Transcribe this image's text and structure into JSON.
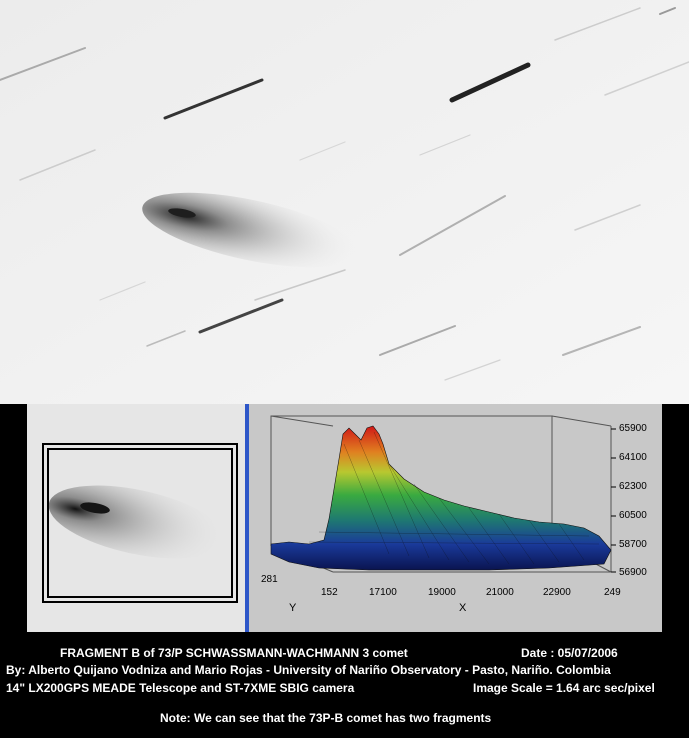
{
  "plot": {
    "z_ticks": [
      "65900",
      "64100",
      "62300",
      "60500",
      "58700",
      "56900"
    ],
    "x_ticks": [
      "152",
      "17100",
      "19000",
      "21000",
      "22900",
      "249"
    ],
    "y_tick": "281",
    "x_label": "X",
    "y_label": "Y"
  },
  "captions": {
    "line1_title": "FRAGMENT B  of   73/P SCHWASSMANN-WACHMANN 3 comet",
    "line1_date": "Date : 05/07/2006",
    "line2": "By: Alberto Quijano Vodniza and Mario Rojas  - University of Nariño Observatory - Pasto, Nariño. Colombia",
    "line3_left": "14\" LX200GPS MEADE Telescope and ST-7XME SBIG camera",
    "line3_right": "Image Scale = 1.64 arc sec/pixel",
    "note": "Note: We can see that the 73P-B comet has two fragments"
  },
  "colors": {
    "sky": "#f3f3f3",
    "divider": "#2d56c8",
    "plot_background": "#c8c8c8",
    "peak": "#cc2020",
    "mid": "#2fa84a",
    "base": "#1a2a8a"
  }
}
